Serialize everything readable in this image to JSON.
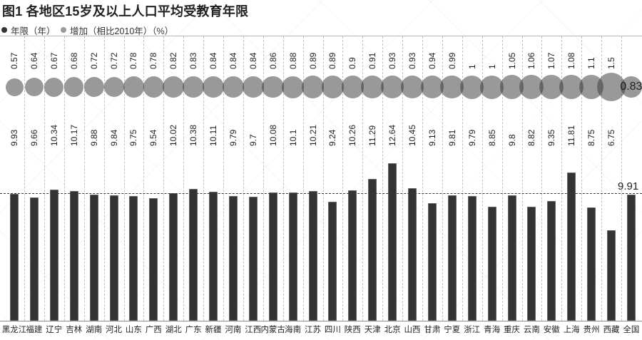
{
  "title": "图1  各地区15岁及以上人口平均受教育年限",
  "legend": [
    {
      "label": "年限（年）",
      "color": "#333333"
    },
    {
      "label": "增加（相比2010年）（%）",
      "color": "#9a9a9a"
    }
  ],
  "colors": {
    "bar": "#333333",
    "bubble": "#9a9a9a",
    "reference_line": "#3a3a3a"
  },
  "chart_data": {
    "type": "bar",
    "title": "各地区15岁及以上人口平均受教育年限",
    "xlabel": "",
    "ylabel": "",
    "grid": "vertical dashed separators",
    "legend_position": "top-left",
    "categories": [
      "黑龙江",
      "福建",
      "辽宁",
      "吉林",
      "湖南",
      "河北",
      "山东",
      "广西",
      "湖北",
      "广东",
      "新疆",
      "河南",
      "江西",
      "内蒙古",
      "海南",
      "江苏",
      "四川",
      "陕西",
      "天津",
      "北京",
      "山西",
      "甘肃",
      "宁夏",
      "浙江",
      "青海",
      "重庆",
      "云南",
      "安徽",
      "上海",
      "贵州",
      "西藏",
      "全国"
    ],
    "series": [
      {
        "name": "年限（年）",
        "type": "bar",
        "values": [
          9.93,
          9.66,
          10.34,
          10.17,
          9.88,
          9.84,
          9.75,
          9.54,
          10.02,
          10.38,
          10.11,
          9.79,
          9.7,
          10.08,
          10.1,
          10.21,
          9.24,
          10.26,
          11.29,
          12.64,
          10.45,
          9.13,
          9.81,
          9.79,
          8.85,
          9.8,
          8.82,
          9.35,
          11.81,
          8.75,
          6.75,
          9.91
        ]
      },
      {
        "name": "增加（相比2010年）（%）",
        "type": "bubble",
        "values": [
          0.57,
          0.64,
          0.67,
          0.68,
          0.72,
          0.72,
          0.78,
          0.78,
          0.82,
          0.83,
          0.84,
          0.84,
          0.84,
          0.86,
          0.88,
          0.89,
          0.89,
          0.9,
          0.91,
          0.93,
          0.93,
          0.94,
          0.99,
          1,
          1,
          1.05,
          1.06,
          1.07,
          1.08,
          1.1,
          1.5,
          0.83
        ]
      }
    ],
    "reference_line": {
      "value": 9.91,
      "label": "9.91",
      "style": "dashed"
    },
    "total_bubble_label": "0.83"
  }
}
